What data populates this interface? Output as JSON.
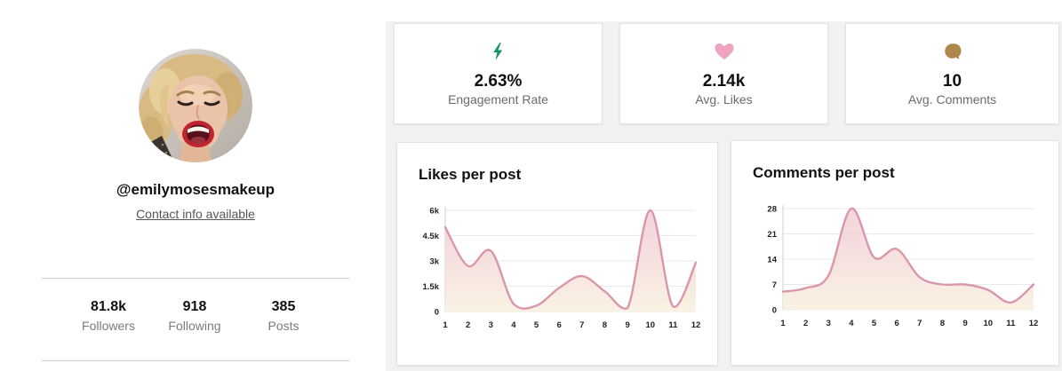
{
  "profile": {
    "username": "@emilymosesmakeup",
    "contact_link": "Contact info available",
    "avatar": "profile-photo-woman-open-mouth",
    "stats": [
      {
        "value": "81.8k",
        "label": "Followers"
      },
      {
        "value": "918",
        "label": "Following"
      },
      {
        "value": "385",
        "label": "Posts"
      }
    ]
  },
  "summary_cards": [
    {
      "icon": "lightning-icon",
      "icon_color": "#17925f",
      "value": "2.63%",
      "label": "Engagement Rate"
    },
    {
      "icon": "heart-icon",
      "icon_color": "#eda3c1",
      "value": "2.14k",
      "label": "Avg. Likes"
    },
    {
      "icon": "comment-icon",
      "icon_color": "#ae874c",
      "value": "10",
      "label": "Avg. Comments"
    }
  ],
  "colors": {
    "chart_line": "#da97aa",
    "chart_fill_top": "#f0c9d4",
    "chart_fill_bottom": "#f9f2e2",
    "grid": "#e9e9e9",
    "section_bg": "#f2f2f2"
  },
  "chart_data": [
    {
      "type": "area",
      "title": "Likes per post",
      "categories": [
        "1",
        "2",
        "3",
        "4",
        "5",
        "6",
        "7",
        "8",
        "9",
        "10",
        "11",
        "12"
      ],
      "values": [
        5000,
        2700,
        3600,
        450,
        350,
        1400,
        2100,
        1200,
        200,
        6000,
        300,
        2900
      ],
      "xlabel": "",
      "ylabel": "",
      "ylim": [
        0,
        6000
      ],
      "yticks": [
        0,
        1500,
        3000,
        4500,
        6000
      ],
      "ytick_labels": [
        "0",
        "1.5k",
        "3k",
        "4.5k",
        "6k"
      ],
      "grid": true,
      "legend": false,
      "line_color": "#da97aa",
      "fill_top": "#f0c9d4",
      "fill_bottom": "#f9f2e2"
    },
    {
      "type": "area",
      "title": "Comments per post",
      "categories": [
        "1",
        "2",
        "3",
        "4",
        "5",
        "6",
        "7",
        "8",
        "9",
        "10",
        "11",
        "12"
      ],
      "values": [
        5,
        6,
        9.5,
        28,
        14.5,
        16.8,
        9,
        7,
        7,
        5.5,
        2,
        7
      ],
      "xlabel": "",
      "ylabel": "",
      "ylim": [
        0,
        28
      ],
      "yticks": [
        0,
        7,
        14,
        21,
        28
      ],
      "ytick_labels": [
        "0",
        "7",
        "14",
        "21",
        "28"
      ],
      "grid": true,
      "legend": false,
      "line_color": "#da97aa",
      "fill_top": "#f0c9d4",
      "fill_bottom": "#f9f2e2"
    }
  ]
}
